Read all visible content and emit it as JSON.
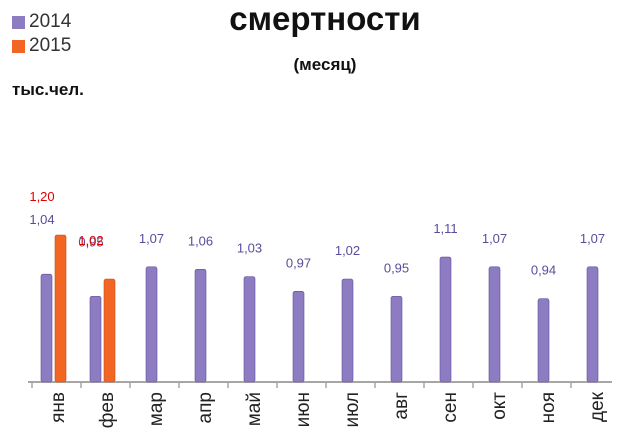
{
  "chart_data": {
    "type": "bar",
    "title": "смертности",
    "subtitle": "(месяц)",
    "unit_label": "тыс.чел.",
    "categories": [
      "янв",
      "фев",
      "мар",
      "апр",
      "май",
      "июн",
      "июл",
      "авг",
      "сен",
      "окт",
      "ноя",
      "дек"
    ],
    "series": [
      {
        "name": "2014",
        "color": "#8e7cc3",
        "values": [
          1.04,
          0.95,
          1.07,
          1.06,
          1.03,
          0.97,
          1.02,
          0.95,
          1.11,
          1.07,
          0.94,
          1.07
        ],
        "labels": [
          "1,04",
          "0,95",
          "1,07",
          "1,06",
          "1,03",
          "0,97",
          "1,02",
          "0,95",
          "1,11",
          "1,07",
          "0,94",
          "1,07"
        ],
        "label_color": "#5b4b9a"
      },
      {
        "name": "2015",
        "color": "#f26522",
        "values": [
          1.2,
          1.02,
          null,
          null,
          null,
          null,
          null,
          null,
          null,
          null,
          null,
          null
        ],
        "labels": [
          "1,20",
          "1,02",
          null,
          null,
          null,
          null,
          null,
          null,
          null,
          null,
          null,
          null
        ],
        "label_color": "#e00000"
      }
    ],
    "ylim": [
      0.6,
      1.2
    ],
    "legend_position": "top-left",
    "grid": false
  }
}
